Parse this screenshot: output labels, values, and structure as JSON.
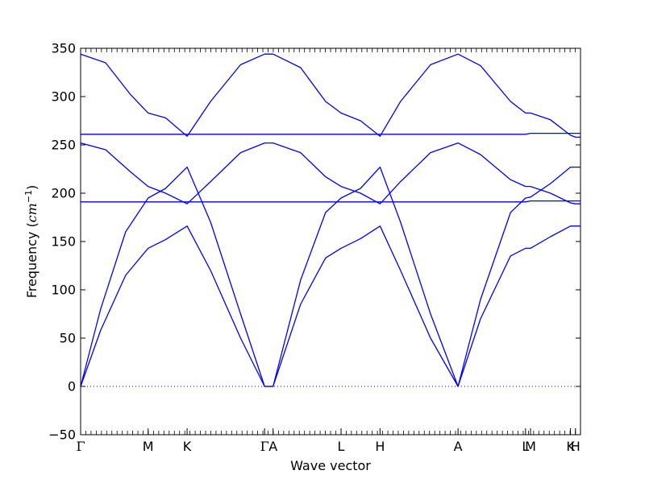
{
  "chart_data": {
    "type": "line",
    "title": "",
    "xlabel": "Wave vector",
    "ylabel_prefix": "Frequency (",
    "ylabel_unit": "cm",
    "ylabel_exp": "−1",
    "ylabel_suffix": ")",
    "ylim": [
      -50,
      350
    ],
    "yticks": [
      -50,
      0,
      50,
      100,
      150,
      200,
      250,
      300,
      350
    ],
    "ytick_labels": [
      "−50",
      "0",
      "50",
      "100",
      "150",
      "200",
      "250",
      "300",
      "350"
    ],
    "xlim": [
      0,
      1
    ],
    "grid": false,
    "high_symmetry_points": [
      {
        "label": "Γ",
        "x": 0.0
      },
      {
        "label": "M",
        "x": 0.135
      },
      {
        "label": "K",
        "x": 0.213
      },
      {
        "label": "Γ",
        "x": 0.368
      },
      {
        "label": "A",
        "x": 0.385
      },
      {
        "label": "L",
        "x": 0.521
      },
      {
        "label": "H",
        "x": 0.599
      },
      {
        "label": "A",
        "x": 0.755
      },
      {
        "label": "L",
        "x": 0.89
      },
      {
        "label": "M",
        "x": 0.9
      },
      {
        "label": "K",
        "x": 0.98
      },
      {
        "label": "H",
        "x": 0.99
      }
    ],
    "zero_line": {
      "y": 0,
      "style": "dotted",
      "color": "#0000ff"
    },
    "series_color": "#0000ff",
    "series": [
      {
        "x": [
          0,
          0.04,
          0.09,
          0.135,
          0.17,
          0.213,
          0.26,
          0.32,
          0.368,
          0.385,
          0.44,
          0.49,
          0.521,
          0.56,
          0.599,
          0.64,
          0.7,
          0.755,
          0.8,
          0.86,
          0.89,
          0.9,
          0.94,
          0.98,
          0.99,
          1.0
        ],
        "y": [
          0,
          58,
          115,
          143,
          152,
          166,
          120,
          50,
          0,
          0,
          85,
          133,
          143,
          153,
          166,
          120,
          50,
          0,
          70,
          135,
          143,
          143,
          155,
          166,
          166,
          166
        ]
      },
      {
        "x": [
          0,
          0.04,
          0.09,
          0.135,
          0.17,
          0.213,
          0.26,
          0.32,
          0.368,
          0.385,
          0.44,
          0.49,
          0.521,
          0.56,
          0.599,
          0.64,
          0.7,
          0.755,
          0.8,
          0.86,
          0.89,
          0.9,
          0.94,
          0.98,
          0.99,
          1.0
        ],
        "y": [
          0,
          80,
          160,
          195,
          205,
          227,
          170,
          75,
          0,
          0,
          110,
          180,
          195,
          205,
          227,
          170,
          75,
          0,
          90,
          180,
          195,
          196,
          210,
          227,
          227,
          227
        ]
      },
      {
        "x": [
          0,
          0.05,
          0.1,
          0.135,
          0.17,
          0.213,
          0.26,
          0.32,
          0.368,
          0.385,
          0.44,
          0.49,
          0.521,
          0.56,
          0.599,
          0.64,
          0.7,
          0.755,
          0.8,
          0.86,
          0.89,
          0.9,
          0.94,
          0.98,
          0.99,
          1.0
        ],
        "y": [
          252,
          245,
          222,
          207,
          200,
          189,
          212,
          242,
          252,
          252,
          242,
          217,
          207,
          200,
          189,
          212,
          242,
          252,
          240,
          214,
          207,
          207,
          200,
          190,
          189,
          189
        ]
      },
      {
        "x": [
          0,
          0.135,
          0.213,
          0.368,
          0.385,
          0.521,
          0.599,
          0.755,
          0.89,
          0.9,
          0.98,
          0.99,
          1.0
        ],
        "y": [
          191,
          191,
          191,
          191,
          191,
          191,
          191,
          191,
          191,
          192,
          192,
          192,
          192
        ]
      },
      {
        "x": [
          0,
          0.05,
          0.1,
          0.135,
          0.17,
          0.213,
          0.26,
          0.32,
          0.368,
          0.385,
          0.44,
          0.49,
          0.521,
          0.56,
          0.599,
          0.64,
          0.7,
          0.755,
          0.8,
          0.86,
          0.89,
          0.9,
          0.94,
          0.98,
          0.99,
          1.0
        ],
        "y": [
          344,
          335,
          302,
          283,
          278,
          259,
          295,
          333,
          344,
          344,
          330,
          295,
          283,
          275,
          259,
          295,
          333,
          344,
          332,
          295,
          283,
          283,
          276,
          260,
          258,
          258
        ]
      },
      {
        "x": [
          0,
          0.135,
          0.213,
          0.368,
          0.385,
          0.521,
          0.599,
          0.755,
          0.89,
          0.9,
          0.98,
          0.99,
          1.0
        ],
        "y": [
          261,
          261,
          261,
          261,
          261,
          261,
          261,
          261,
          261,
          262,
          262,
          262,
          262
        ]
      }
    ]
  }
}
